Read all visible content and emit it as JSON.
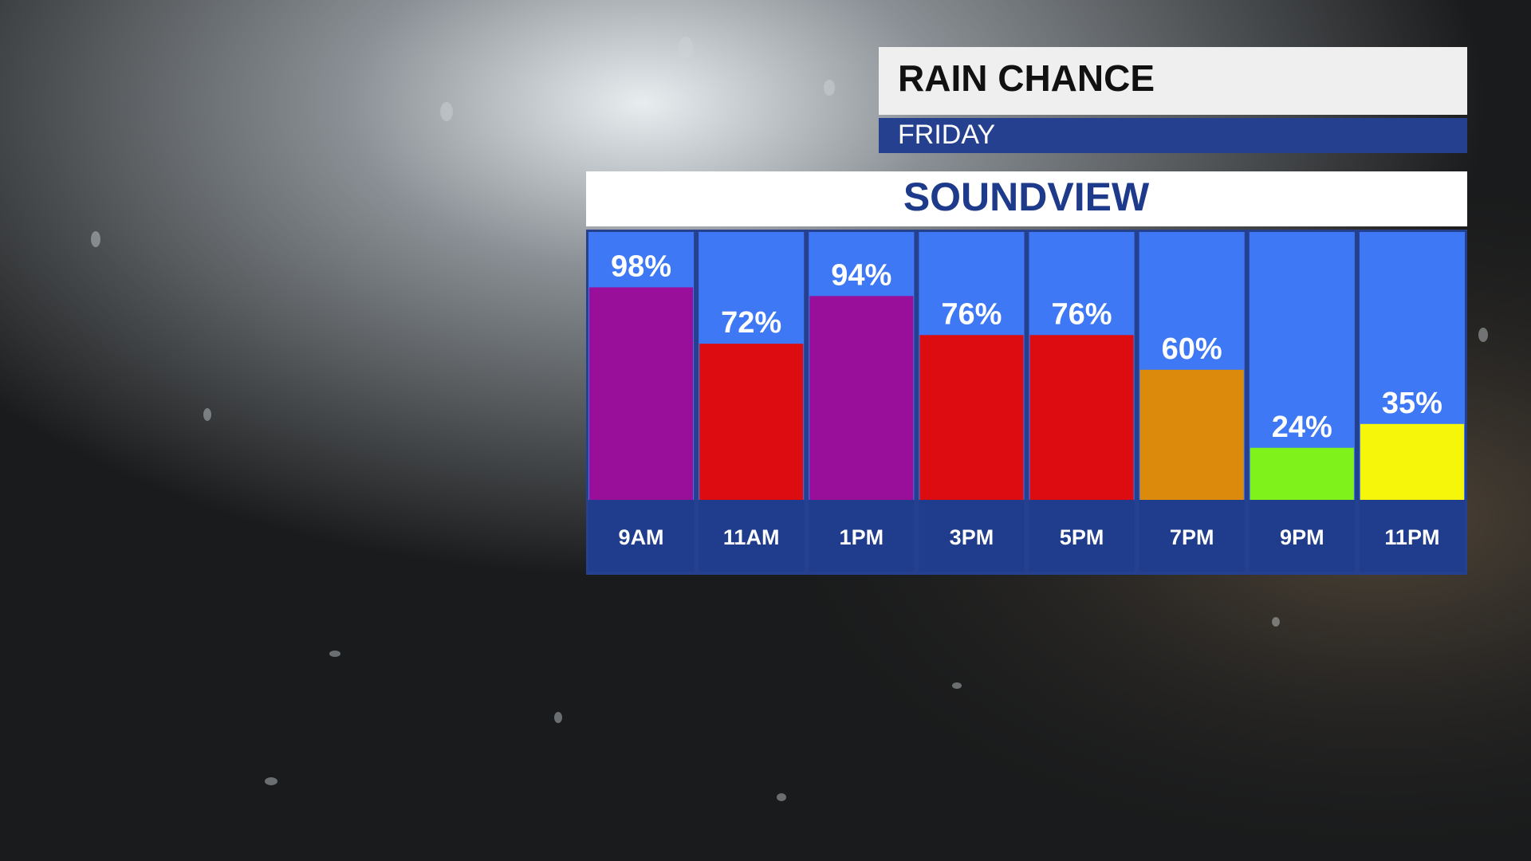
{
  "chart_data": {
    "type": "bar",
    "title": "RAIN CHANCE",
    "subtitle": "FRIDAY",
    "location": "SOUNDVIEW",
    "categories": [
      "9AM",
      "11AM",
      "1PM",
      "3PM",
      "5PM",
      "7PM",
      "9PM",
      "11PM"
    ],
    "values": [
      98,
      72,
      94,
      76,
      76,
      60,
      24,
      35
    ],
    "value_labels": [
      "98%",
      "72%",
      "94%",
      "76%",
      "76%",
      "60%",
      "24%",
      "35%"
    ],
    "colors": [
      "#9a0f9a",
      "#dc0c10",
      "#9a0f9a",
      "#dc0c10",
      "#dc0c10",
      "#dc8a0c",
      "#7ef21a",
      "#f6f60a"
    ],
    "ylim": [
      0,
      100
    ]
  }
}
